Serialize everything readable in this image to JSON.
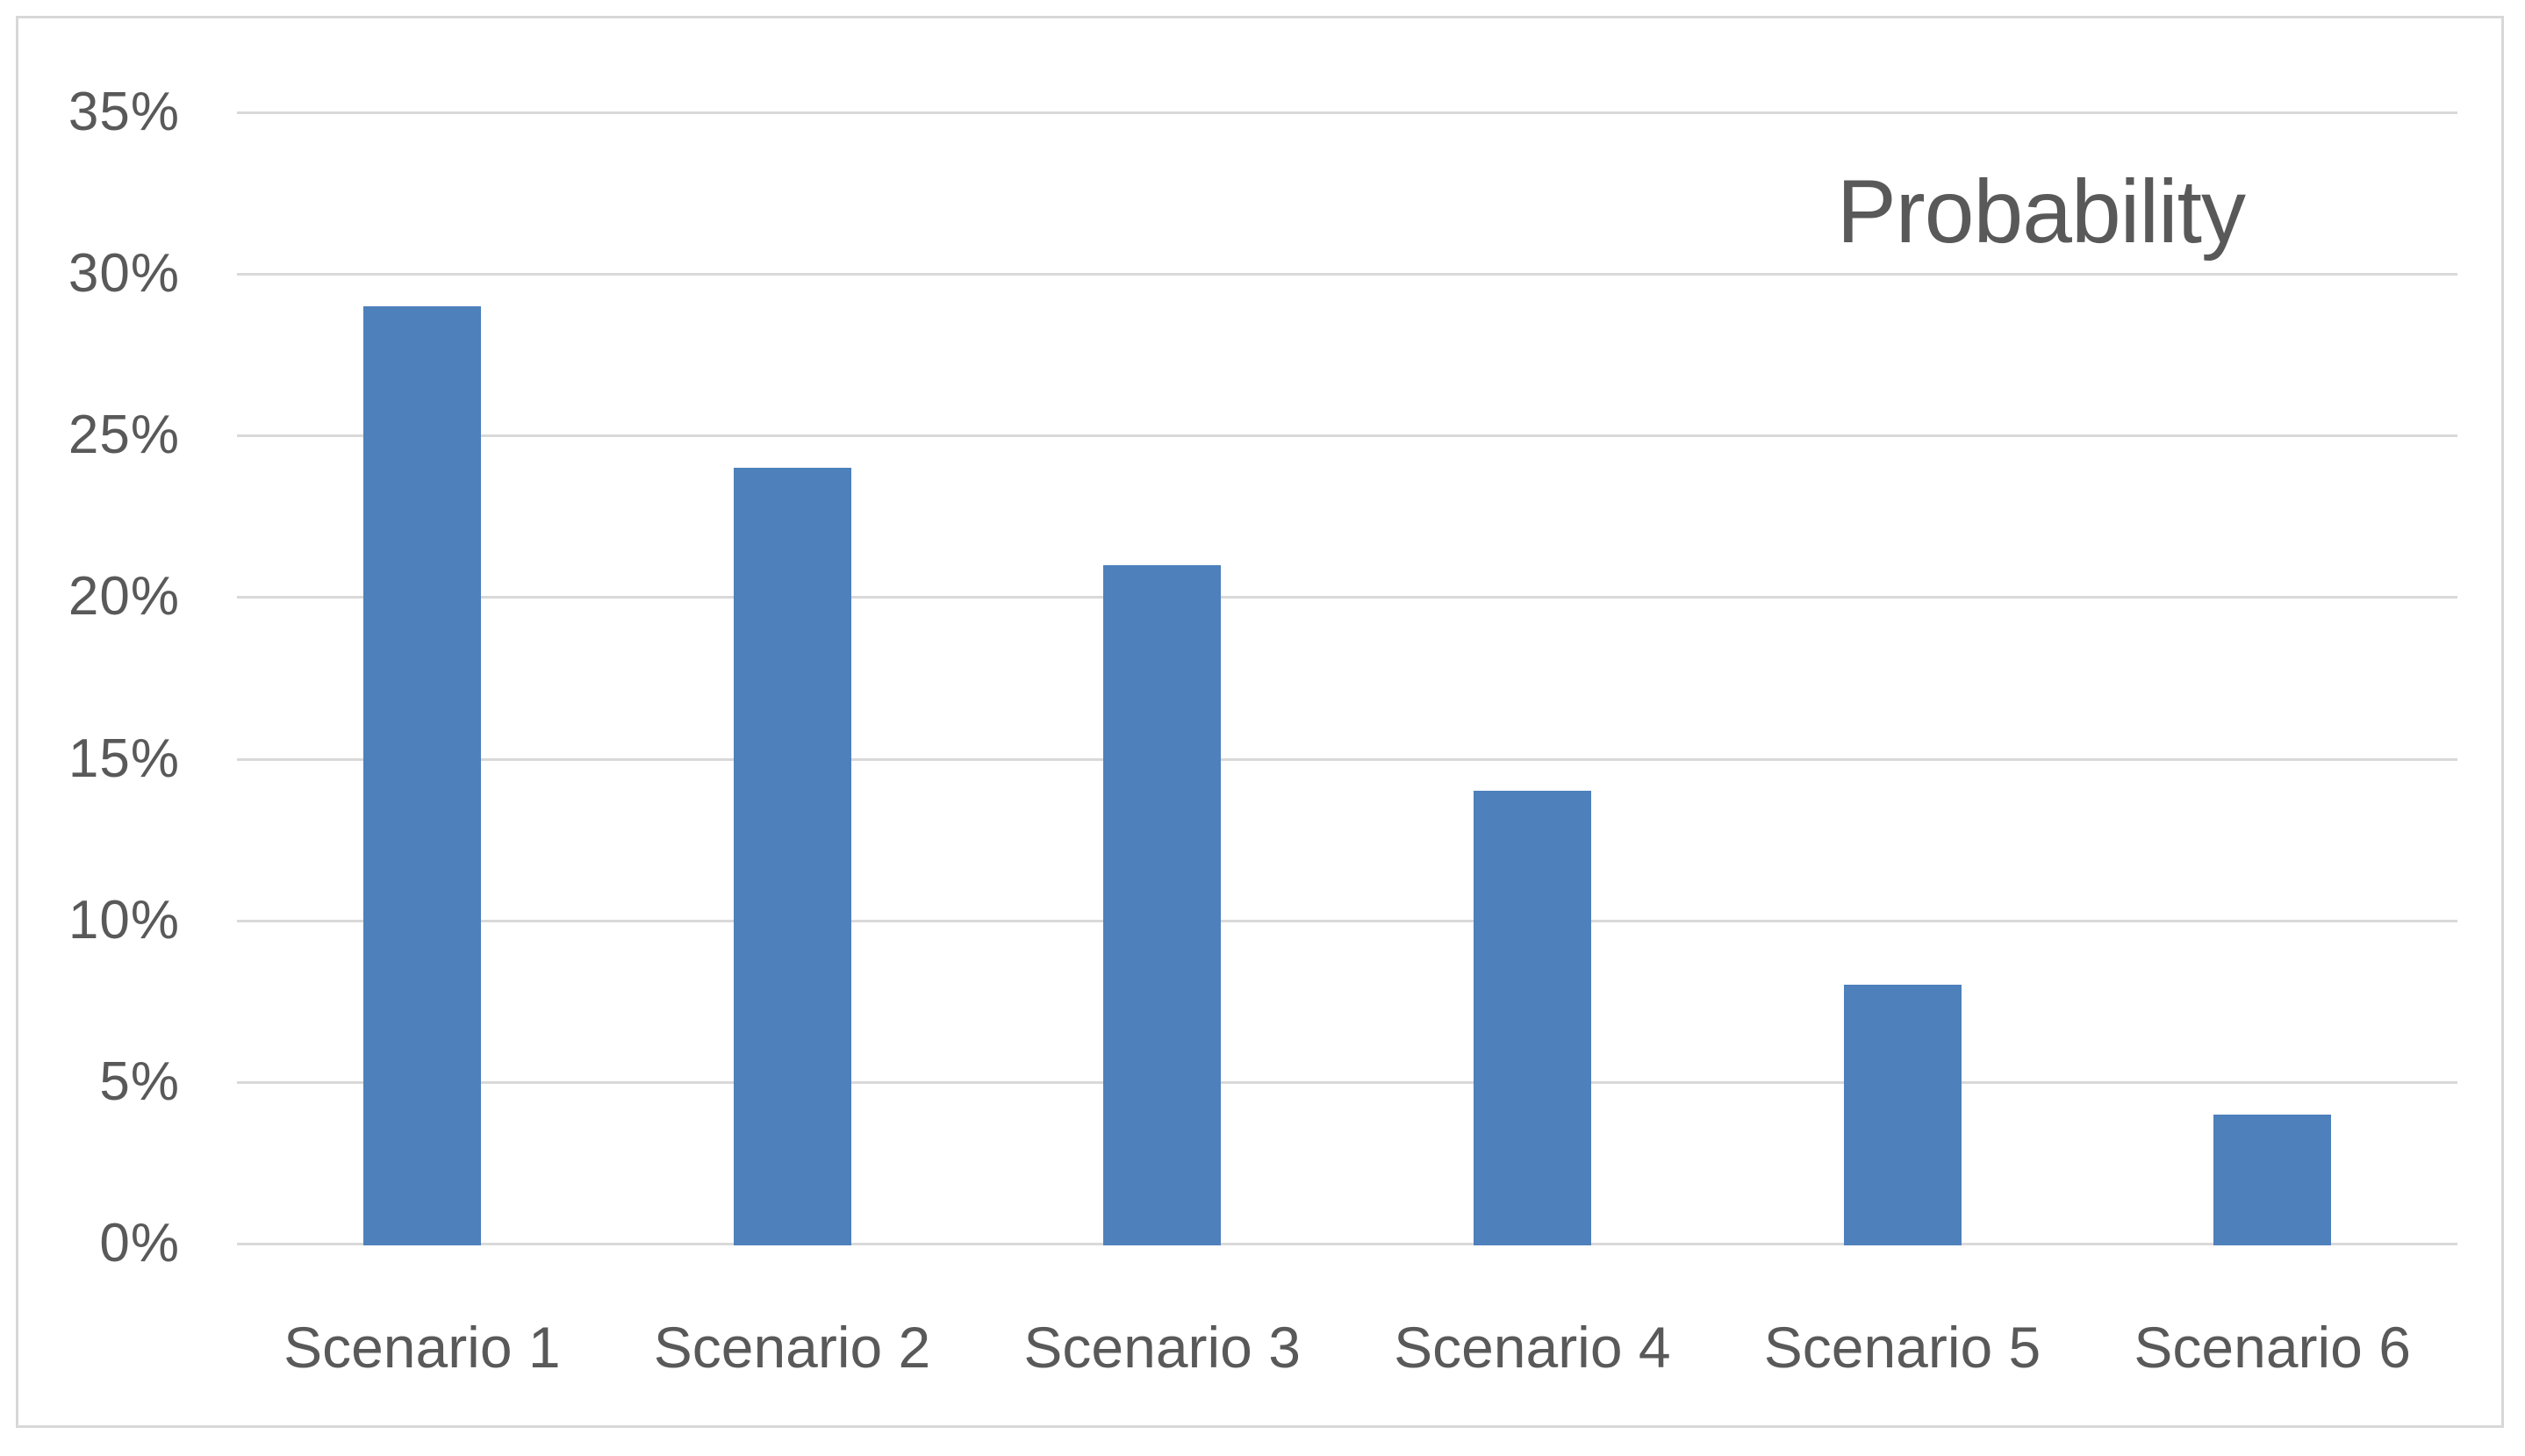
{
  "chart_data": {
    "type": "bar",
    "title": "Probability",
    "categories": [
      "Scenario 1",
      "Scenario 2",
      "Scenario 3",
      "Scenario 4",
      "Scenario 5",
      "Scenario 6"
    ],
    "values": [
      29,
      24,
      21,
      14,
      8,
      4
    ],
    "unit": "%",
    "xlabel": "",
    "ylabel": "",
    "ylim": [
      0,
      35
    ],
    "ytick_values": [
      0,
      5,
      10,
      15,
      20,
      25,
      30,
      35
    ],
    "ytick_labels": [
      "0%",
      "5%",
      "10%",
      "15%",
      "20%",
      "25%",
      "30%",
      "35%"
    ],
    "grid": true,
    "legend_position": "none",
    "title_position": "top-right",
    "colors": {
      "bar_fill": "#4e80bc",
      "gridline": "#d9d9d9",
      "axis_text": "#595959",
      "title_text": "#595959",
      "frame_border": "#d8d8d8",
      "background": "#ffffff"
    }
  }
}
